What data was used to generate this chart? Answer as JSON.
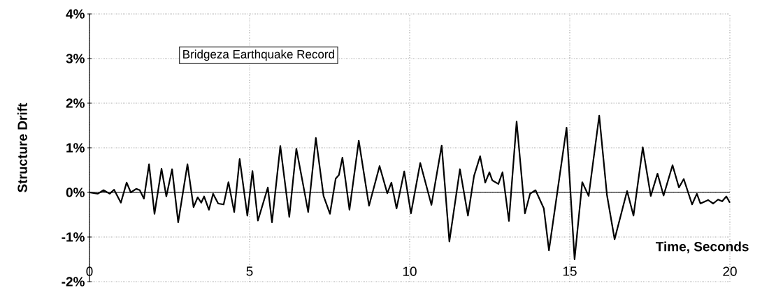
{
  "chart_data": {
    "type": "line",
    "title": "Bridgeza Earthquake Record",
    "xlabel": "Time, Seconds",
    "ylabel": "Structure Drift",
    "xlim": [
      0,
      20
    ],
    "xticks": [
      0,
      5,
      10,
      15,
      20
    ],
    "ylim": [
      -2,
      4
    ],
    "yticks": [
      {
        "value": -2,
        "label": "-2%"
      },
      {
        "value": -1,
        "label": "-1%"
      },
      {
        "value": 0,
        "label": "0%"
      },
      {
        "value": 1,
        "label": "1%"
      },
      {
        "value": 2,
        "label": "2%"
      },
      {
        "value": 3,
        "label": "3%"
      },
      {
        "value": 4,
        "label": "4%"
      }
    ],
    "grid": true,
    "marker": "none",
    "line_style": "solid",
    "series": [
      {
        "color": "#000000",
        "x": [
          0,
          0.26,
          0.44,
          0.63,
          0.77,
          0.98,
          1.16,
          1.29,
          1.46,
          1.57,
          1.7,
          1.86,
          2.03,
          2.25,
          2.4,
          2.58,
          2.77,
          3.06,
          3.25,
          3.38,
          3.49,
          3.58,
          3.73,
          3.86,
          4.02,
          4.19,
          4.34,
          4.52,
          4.69,
          4.93,
          5.09,
          5.26,
          5.57,
          5.7,
          5.96,
          6.24,
          6.46,
          6.66,
          6.83,
          7.07,
          7.31,
          7.51,
          7.69,
          7.79,
          7.9,
          8.12,
          8.41,
          8.73,
          9.06,
          9.3,
          9.43,
          9.59,
          9.83,
          10.04,
          10.33,
          10.68,
          11.0,
          11.24,
          11.57,
          11.82,
          12.01,
          12.2,
          12.36,
          12.49,
          12.58,
          12.77,
          12.9,
          13.1,
          13.34,
          13.6,
          13.76,
          13.93,
          14.19,
          14.35,
          14.61,
          14.9,
          15.15,
          15.39,
          15.59,
          15.92,
          16.16,
          16.4,
          16.79,
          16.99,
          17.28,
          17.53,
          17.74,
          17.93,
          18.21,
          18.41,
          18.56,
          18.82,
          18.97,
          19.08,
          19.32,
          19.48,
          19.63,
          19.76,
          19.89,
          20.0
        ],
        "values": [
          0,
          -0.03,
          0.05,
          -0.03,
          0.06,
          -0.23,
          0.22,
          0.0,
          0.08,
          0.05,
          -0.14,
          0.63,
          -0.48,
          0.53,
          -0.09,
          0.52,
          -0.67,
          0.63,
          -0.33,
          -0.11,
          -0.23,
          -0.09,
          -0.39,
          -0.03,
          -0.25,
          -0.27,
          0.23,
          -0.44,
          0.75,
          -0.52,
          0.48,
          -0.63,
          0.11,
          -0.67,
          1.04,
          -0.55,
          0.98,
          0.22,
          -0.44,
          1.22,
          -0.08,
          -0.48,
          0.31,
          0.39,
          0.78,
          -0.39,
          1.16,
          -0.3,
          0.59,
          -0.02,
          0.22,
          -0.36,
          0.47,
          -0.47,
          0.66,
          -0.28,
          1.05,
          -1.1,
          0.52,
          -0.52,
          0.37,
          0.81,
          0.22,
          0.45,
          0.27,
          0.19,
          0.45,
          -0.64,
          1.59,
          -0.47,
          -0.03,
          0.05,
          -0.36,
          -1.3,
          0.0,
          1.45,
          -1.5,
          0.23,
          -0.08,
          1.72,
          -0.05,
          -1.05,
          0.03,
          -0.52,
          1.01,
          -0.08,
          0.42,
          -0.07,
          0.61,
          0.11,
          0.3,
          -0.27,
          -0.03,
          -0.25,
          -0.17,
          -0.25,
          -0.16,
          -0.2,
          -0.09,
          -0.23
        ]
      }
    ]
  }
}
